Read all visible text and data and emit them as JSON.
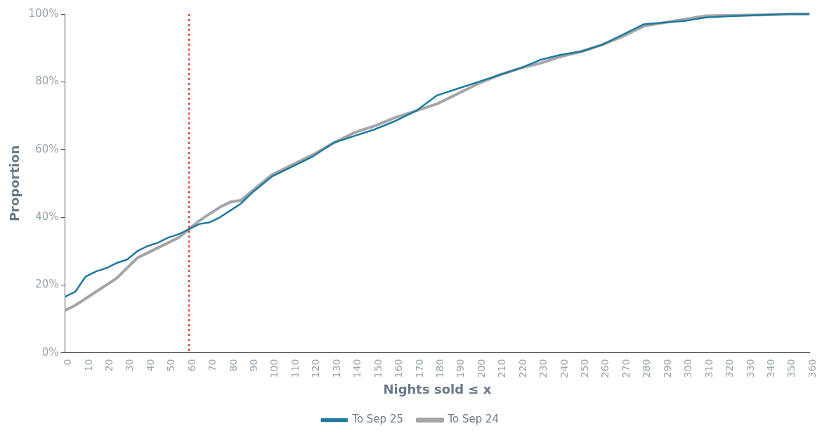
{
  "chart_data": {
    "type": "line",
    "xlabel": "Nights sold ≤ x",
    "ylabel": "Proportion",
    "x": [
      0,
      5,
      10,
      15,
      20,
      25,
      30,
      35,
      40,
      45,
      50,
      55,
      60,
      65,
      70,
      75,
      80,
      85,
      90,
      95,
      100,
      110,
      120,
      130,
      140,
      150,
      160,
      170,
      180,
      190,
      200,
      210,
      220,
      230,
      240,
      250,
      260,
      270,
      280,
      290,
      300,
      310,
      320,
      330,
      340,
      350,
      360
    ],
    "series": [
      {
        "name": "To Sep 25",
        "color": "#1f7a9e",
        "values": [
          16.5,
          18,
          22.5,
          24,
          25,
          26.5,
          27.5,
          30,
          31.5,
          32.5,
          34,
          35,
          36.5,
          38,
          38.5,
          40,
          42,
          44,
          47,
          49.5,
          52,
          55,
          58,
          62,
          64,
          66,
          68.5,
          71.5,
          76,
          78,
          80,
          82,
          84,
          86.5,
          88,
          89,
          91,
          94,
          97,
          97.5,
          98,
          99,
          99.3,
          99.6,
          99.8,
          100,
          100
        ]
      },
      {
        "name": "To Sep 24",
        "color": "#a3a5a8",
        "values": [
          12.5,
          14,
          16,
          18,
          20,
          22,
          25,
          28,
          29.5,
          31,
          32.5,
          34,
          36.5,
          39,
          41,
          43,
          44.5,
          45,
          47.5,
          50,
          52.5,
          55.5,
          58.5,
          62,
          65,
          67,
          69.5,
          71.5,
          73.5,
          76.5,
          79.5,
          82,
          84,
          85.5,
          87.5,
          89,
          91,
          93.5,
          96.5,
          97.5,
          98.5,
          99.5,
          99.6,
          99.7,
          99.8,
          100,
          100
        ]
      }
    ],
    "xlim": [
      0,
      360
    ],
    "xticks": [
      0,
      10,
      20,
      30,
      40,
      50,
      60,
      70,
      80,
      90,
      100,
      110,
      120,
      130,
      140,
      150,
      160,
      170,
      180,
      190,
      200,
      210,
      220,
      230,
      240,
      250,
      260,
      270,
      280,
      290,
      300,
      310,
      320,
      330,
      340,
      350,
      360
    ],
    "ylim": [
      0,
      100
    ],
    "yticks": [
      {
        "value": 0,
        "label": "0%"
      },
      {
        "value": 20,
        "label": "20%"
      },
      {
        "value": 40,
        "label": "40%"
      },
      {
        "value": 60,
        "label": "60%"
      },
      {
        "value": 80,
        "label": "80%"
      },
      {
        "value": 100,
        "label": "100%"
      }
    ],
    "ref_lines": [
      {
        "axis": "x",
        "value": 60,
        "color": "#e8413c",
        "line_style": "dotted"
      }
    ],
    "legend": "bottom",
    "grid": false,
    "marker": "none",
    "line_style": "solid"
  }
}
